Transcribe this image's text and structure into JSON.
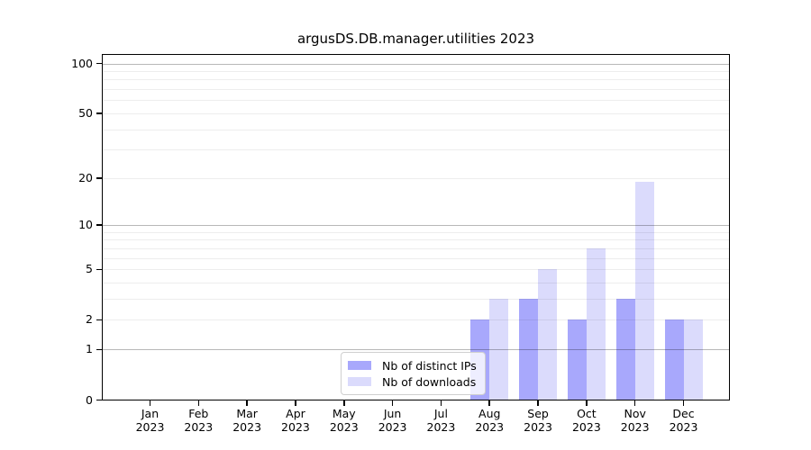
{
  "chart_data": {
    "type": "bar",
    "title": "argusDS.DB.manager.utilities 2023",
    "categories": [
      "Jan",
      "Feb",
      "Mar",
      "Apr",
      "May",
      "Jun",
      "Jul",
      "Aug",
      "Sep",
      "Oct",
      "Nov",
      "Dec"
    ],
    "category_year": "2023",
    "series": [
      {
        "name": "Nb of distinct IPs",
        "color": "#a8a8fc",
        "values": [
          0,
          0,
          0,
          0,
          0,
          0,
          0,
          2,
          3,
          2,
          3,
          2
        ]
      },
      {
        "name": "Nb of downloads",
        "color": "#dbdbfc",
        "values": [
          0,
          0,
          0,
          0,
          0,
          0,
          0,
          3,
          5,
          7,
          19,
          2
        ]
      }
    ],
    "xlabel": "",
    "ylabel": "",
    "yaxis": {
      "scale": "log1p",
      "tick_values": [
        0,
        1,
        2,
        5,
        10,
        20,
        50,
        100
      ],
      "major_gridlines": [
        1,
        10,
        100
      ],
      "minor_gridlines": [
        2,
        3,
        4,
        5,
        6,
        7,
        8,
        9,
        20,
        30,
        40,
        50,
        60,
        70,
        80,
        90
      ],
      "ylim": [
        0,
        114
      ]
    },
    "grid": true,
    "legend_position": "lower center",
    "colors": {
      "background": "#ffffff",
      "spine": "#000000",
      "major_grid": "rgba(0,0,0,0.28)",
      "minor_grid": "rgba(0,0,0,0.07)"
    }
  }
}
